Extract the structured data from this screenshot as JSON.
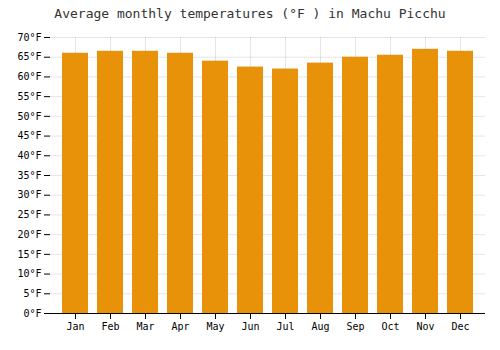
{
  "chart_data": {
    "type": "bar",
    "title": "Average monthly temperatures (°F ) in Machu Picchu",
    "categories": [
      "Jan",
      "Feb",
      "Mar",
      "Apr",
      "May",
      "Jun",
      "Jul",
      "Aug",
      "Sep",
      "Oct",
      "Nov",
      "Dec"
    ],
    "values": [
      66.0,
      66.5,
      66.5,
      66.0,
      64.0,
      62.5,
      62.0,
      63.5,
      65.0,
      65.5,
      67.0,
      66.5
    ],
    "color": "#E8920A",
    "ylim": [
      0,
      70
    ],
    "yticks": [
      {
        "value": 0,
        "label": "0°F"
      },
      {
        "value": 5,
        "label": "5°F"
      },
      {
        "value": 10,
        "label": "10°F"
      },
      {
        "value": 15,
        "label": "15°F"
      },
      {
        "value": 20,
        "label": "20°F"
      },
      {
        "value": 25,
        "label": "25°F"
      },
      {
        "value": 30,
        "label": "30°F"
      },
      {
        "value": 35,
        "label": "35°F"
      },
      {
        "value": 40,
        "label": "40°F"
      },
      {
        "value": 45,
        "label": "45°F"
      },
      {
        "value": 50,
        "label": "50°F"
      },
      {
        "value": 55,
        "label": "55°F"
      },
      {
        "value": 60,
        "label": "60°F"
      },
      {
        "value": 65,
        "label": "65°F"
      },
      {
        "value": 70,
        "label": "70°F"
      }
    ],
    "grid": true
  }
}
